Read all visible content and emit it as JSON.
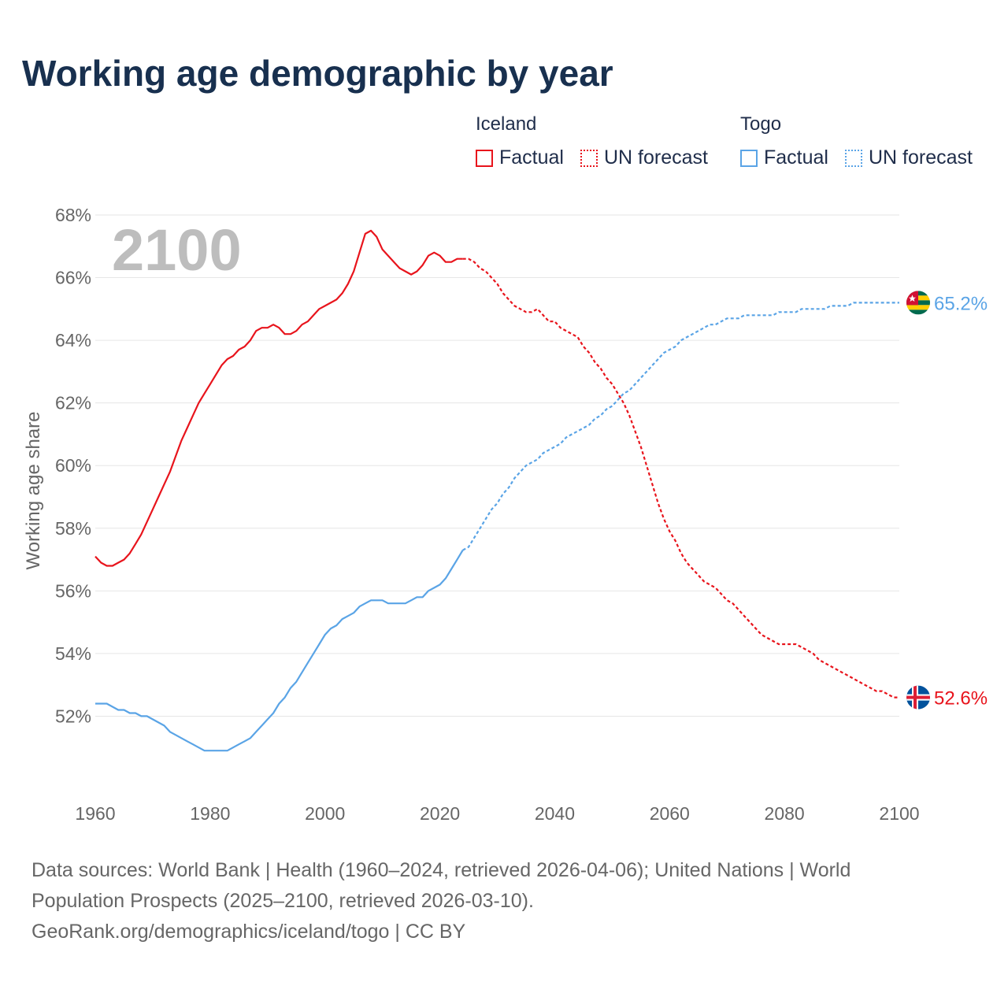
{
  "title": "Working age demographic by year",
  "legend": {
    "groups": [
      {
        "name": "Iceland",
        "color": "#e8141c",
        "factual": "Factual",
        "forecast": "UN forecast"
      },
      {
        "name": "Togo",
        "color": "#5aa4e6",
        "factual": "Factual",
        "forecast": "UN forecast"
      }
    ]
  },
  "footer": {
    "line1": "Data sources: World Bank | Health (1960–2024, retrieved 2026-04-06); United Nations | World",
    "line2": "Population Prospects (2025–2100, retrieved 2026-03-10).",
    "line3": "GeoRank.org/demographics/iceland/togo | CC BY"
  },
  "chart_data": {
    "type": "line",
    "title": "Working age demographic by year",
    "year_overlay": "2100",
    "xlabel": "",
    "ylabel": "Working age share",
    "xlim": [
      1960,
      2100
    ],
    "ylim": [
      50,
      68
    ],
    "xticks": [
      1960,
      1980,
      2000,
      2020,
      2040,
      2060,
      2080,
      2100
    ],
    "yticks": [
      52,
      54,
      56,
      58,
      60,
      62,
      64,
      66,
      68
    ],
    "ytick_labels": [
      "52%",
      "54%",
      "56%",
      "58%",
      "60%",
      "62%",
      "64%",
      "66%",
      "68%"
    ],
    "grid": true,
    "forecast_start": 2024,
    "series": [
      {
        "name": "Iceland",
        "color": "#e8141c",
        "end_label": "52.6%",
        "points": [
          [
            1960,
            57.1
          ],
          [
            1961,
            56.9
          ],
          [
            1962,
            56.8
          ],
          [
            1963,
            56.8
          ],
          [
            1964,
            56.9
          ],
          [
            1965,
            57.0
          ],
          [
            1966,
            57.2
          ],
          [
            1967,
            57.5
          ],
          [
            1968,
            57.8
          ],
          [
            1969,
            58.2
          ],
          [
            1970,
            58.6
          ],
          [
            1971,
            59.0
          ],
          [
            1972,
            59.4
          ],
          [
            1973,
            59.8
          ],
          [
            1974,
            60.3
          ],
          [
            1975,
            60.8
          ],
          [
            1976,
            61.2
          ],
          [
            1977,
            61.6
          ],
          [
            1978,
            62.0
          ],
          [
            1979,
            62.3
          ],
          [
            1980,
            62.6
          ],
          [
            1981,
            62.9
          ],
          [
            1982,
            63.2
          ],
          [
            1983,
            63.4
          ],
          [
            1984,
            63.5
          ],
          [
            1985,
            63.7
          ],
          [
            1986,
            63.8
          ],
          [
            1987,
            64.0
          ],
          [
            1988,
            64.3
          ],
          [
            1989,
            64.4
          ],
          [
            1990,
            64.4
          ],
          [
            1991,
            64.5
          ],
          [
            1992,
            64.4
          ],
          [
            1993,
            64.2
          ],
          [
            1994,
            64.2
          ],
          [
            1995,
            64.3
          ],
          [
            1996,
            64.5
          ],
          [
            1997,
            64.6
          ],
          [
            1998,
            64.8
          ],
          [
            1999,
            65.0
          ],
          [
            2000,
            65.1
          ],
          [
            2001,
            65.2
          ],
          [
            2002,
            65.3
          ],
          [
            2003,
            65.5
          ],
          [
            2004,
            65.8
          ],
          [
            2005,
            66.2
          ],
          [
            2006,
            66.8
          ],
          [
            2007,
            67.4
          ],
          [
            2008,
            67.5
          ],
          [
            2009,
            67.3
          ],
          [
            2010,
            66.9
          ],
          [
            2011,
            66.7
          ],
          [
            2012,
            66.5
          ],
          [
            2013,
            66.3
          ],
          [
            2014,
            66.2
          ],
          [
            2015,
            66.1
          ],
          [
            2016,
            66.2
          ],
          [
            2017,
            66.4
          ],
          [
            2018,
            66.7
          ],
          [
            2019,
            66.8
          ],
          [
            2020,
            66.7
          ],
          [
            2021,
            66.5
          ],
          [
            2022,
            66.5
          ],
          [
            2023,
            66.6
          ],
          [
            2024,
            66.6
          ],
          [
            2025,
            66.6
          ],
          [
            2026,
            66.5
          ],
          [
            2027,
            66.3
          ],
          [
            2028,
            66.2
          ],
          [
            2029,
            66.0
          ],
          [
            2030,
            65.8
          ],
          [
            2031,
            65.5
          ],
          [
            2032,
            65.3
          ],
          [
            2033,
            65.1
          ],
          [
            2034,
            65.0
          ],
          [
            2035,
            64.9
          ],
          [
            2036,
            64.9
          ],
          [
            2037,
            65.0
          ],
          [
            2038,
            64.8
          ],
          [
            2039,
            64.6
          ],
          [
            2040,
            64.6
          ],
          [
            2041,
            64.4
          ],
          [
            2042,
            64.3
          ],
          [
            2043,
            64.2
          ],
          [
            2044,
            64.1
          ],
          [
            2045,
            63.8
          ],
          [
            2046,
            63.6
          ],
          [
            2047,
            63.3
          ],
          [
            2048,
            63.1
          ],
          [
            2049,
            62.8
          ],
          [
            2050,
            62.6
          ],
          [
            2051,
            62.3
          ],
          [
            2052,
            62.0
          ],
          [
            2053,
            61.6
          ],
          [
            2054,
            61.1
          ],
          [
            2055,
            60.6
          ],
          [
            2056,
            60.0
          ],
          [
            2057,
            59.4
          ],
          [
            2058,
            58.8
          ],
          [
            2059,
            58.3
          ],
          [
            2060,
            57.9
          ],
          [
            2061,
            57.6
          ],
          [
            2062,
            57.2
          ],
          [
            2063,
            56.9
          ],
          [
            2064,
            56.7
          ],
          [
            2065,
            56.5
          ],
          [
            2066,
            56.3
          ],
          [
            2067,
            56.2
          ],
          [
            2068,
            56.1
          ],
          [
            2069,
            55.9
          ],
          [
            2070,
            55.7
          ],
          [
            2071,
            55.6
          ],
          [
            2072,
            55.4
          ],
          [
            2073,
            55.2
          ],
          [
            2074,
            55.0
          ],
          [
            2075,
            54.8
          ],
          [
            2076,
            54.6
          ],
          [
            2077,
            54.5
          ],
          [
            2078,
            54.4
          ],
          [
            2079,
            54.3
          ],
          [
            2080,
            54.3
          ],
          [
            2081,
            54.3
          ],
          [
            2082,
            54.3
          ],
          [
            2083,
            54.2
          ],
          [
            2084,
            54.1
          ],
          [
            2085,
            54.0
          ],
          [
            2086,
            53.8
          ],
          [
            2087,
            53.7
          ],
          [
            2088,
            53.6
          ],
          [
            2089,
            53.5
          ],
          [
            2090,
            53.4
          ],
          [
            2091,
            53.3
          ],
          [
            2092,
            53.2
          ],
          [
            2093,
            53.1
          ],
          [
            2094,
            53.0
          ],
          [
            2095,
            52.9
          ],
          [
            2096,
            52.8
          ],
          [
            2097,
            52.8
          ],
          [
            2098,
            52.7
          ],
          [
            2099,
            52.6
          ],
          [
            2100,
            52.6
          ]
        ]
      },
      {
        "name": "Togo",
        "color": "#5aa4e6",
        "end_label": "65.2%",
        "points": [
          [
            1960,
            52.4
          ],
          [
            1961,
            52.4
          ],
          [
            1962,
            52.4
          ],
          [
            1963,
            52.3
          ],
          [
            1964,
            52.2
          ],
          [
            1965,
            52.2
          ],
          [
            1966,
            52.1
          ],
          [
            1967,
            52.1
          ],
          [
            1968,
            52.0
          ],
          [
            1969,
            52.0
          ],
          [
            1970,
            51.9
          ],
          [
            1971,
            51.8
          ],
          [
            1972,
            51.7
          ],
          [
            1973,
            51.5
          ],
          [
            1974,
            51.4
          ],
          [
            1975,
            51.3
          ],
          [
            1976,
            51.2
          ],
          [
            1977,
            51.1
          ],
          [
            1978,
            51.0
          ],
          [
            1979,
            50.9
          ],
          [
            1980,
            50.9
          ],
          [
            1981,
            50.9
          ],
          [
            1982,
            50.9
          ],
          [
            1983,
            50.9
          ],
          [
            1984,
            51.0
          ],
          [
            1985,
            51.1
          ],
          [
            1986,
            51.2
          ],
          [
            1987,
            51.3
          ],
          [
            1988,
            51.5
          ],
          [
            1989,
            51.7
          ],
          [
            1990,
            51.9
          ],
          [
            1991,
            52.1
          ],
          [
            1992,
            52.4
          ],
          [
            1993,
            52.6
          ],
          [
            1994,
            52.9
          ],
          [
            1995,
            53.1
          ],
          [
            1996,
            53.4
          ],
          [
            1997,
            53.7
          ],
          [
            1998,
            54.0
          ],
          [
            1999,
            54.3
          ],
          [
            2000,
            54.6
          ],
          [
            2001,
            54.8
          ],
          [
            2002,
            54.9
          ],
          [
            2003,
            55.1
          ],
          [
            2004,
            55.2
          ],
          [
            2005,
            55.3
          ],
          [
            2006,
            55.5
          ],
          [
            2007,
            55.6
          ],
          [
            2008,
            55.7
          ],
          [
            2009,
            55.7
          ],
          [
            2010,
            55.7
          ],
          [
            2011,
            55.6
          ],
          [
            2012,
            55.6
          ],
          [
            2013,
            55.6
          ],
          [
            2014,
            55.6
          ],
          [
            2015,
            55.7
          ],
          [
            2016,
            55.8
          ],
          [
            2017,
            55.8
          ],
          [
            2018,
            56.0
          ],
          [
            2019,
            56.1
          ],
          [
            2020,
            56.2
          ],
          [
            2021,
            56.4
          ],
          [
            2022,
            56.7
          ],
          [
            2023,
            57.0
          ],
          [
            2024,
            57.3
          ],
          [
            2025,
            57.4
          ],
          [
            2026,
            57.7
          ],
          [
            2027,
            58.0
          ],
          [
            2028,
            58.3
          ],
          [
            2029,
            58.6
          ],
          [
            2030,
            58.8
          ],
          [
            2031,
            59.1
          ],
          [
            2032,
            59.3
          ],
          [
            2033,
            59.6
          ],
          [
            2034,
            59.8
          ],
          [
            2035,
            60.0
          ],
          [
            2036,
            60.1
          ],
          [
            2037,
            60.2
          ],
          [
            2038,
            60.4
          ],
          [
            2039,
            60.5
          ],
          [
            2040,
            60.6
          ],
          [
            2041,
            60.7
          ],
          [
            2042,
            60.9
          ],
          [
            2043,
            61.0
          ],
          [
            2044,
            61.1
          ],
          [
            2045,
            61.2
          ],
          [
            2046,
            61.3
          ],
          [
            2047,
            61.5
          ],
          [
            2048,
            61.6
          ],
          [
            2049,
            61.8
          ],
          [
            2050,
            61.9
          ],
          [
            2051,
            62.1
          ],
          [
            2052,
            62.3
          ],
          [
            2053,
            62.4
          ],
          [
            2054,
            62.6
          ],
          [
            2055,
            62.8
          ],
          [
            2056,
            63.0
          ],
          [
            2057,
            63.2
          ],
          [
            2058,
            63.4
          ],
          [
            2059,
            63.6
          ],
          [
            2060,
            63.7
          ],
          [
            2061,
            63.8
          ],
          [
            2062,
            64.0
          ],
          [
            2063,
            64.1
          ],
          [
            2064,
            64.2
          ],
          [
            2065,
            64.3
          ],
          [
            2066,
            64.4
          ],
          [
            2067,
            64.5
          ],
          [
            2068,
            64.5
          ],
          [
            2069,
            64.6
          ],
          [
            2070,
            64.7
          ],
          [
            2071,
            64.7
          ],
          [
            2072,
            64.7
          ],
          [
            2073,
            64.8
          ],
          [
            2074,
            64.8
          ],
          [
            2075,
            64.8
          ],
          [
            2076,
            64.8
          ],
          [
            2077,
            64.8
          ],
          [
            2078,
            64.8
          ],
          [
            2079,
            64.9
          ],
          [
            2080,
            64.9
          ],
          [
            2081,
            64.9
          ],
          [
            2082,
            64.9
          ],
          [
            2083,
            65.0
          ],
          [
            2084,
            65.0
          ],
          [
            2085,
            65.0
          ],
          [
            2086,
            65.0
          ],
          [
            2087,
            65.0
          ],
          [
            2088,
            65.1
          ],
          [
            2089,
            65.1
          ],
          [
            2090,
            65.1
          ],
          [
            2091,
            65.1
          ],
          [
            2092,
            65.2
          ],
          [
            2093,
            65.2
          ],
          [
            2094,
            65.2
          ],
          [
            2095,
            65.2
          ],
          [
            2096,
            65.2
          ],
          [
            2097,
            65.2
          ],
          [
            2098,
            65.2
          ],
          [
            2099,
            65.2
          ],
          [
            2100,
            65.2
          ]
        ]
      }
    ]
  }
}
